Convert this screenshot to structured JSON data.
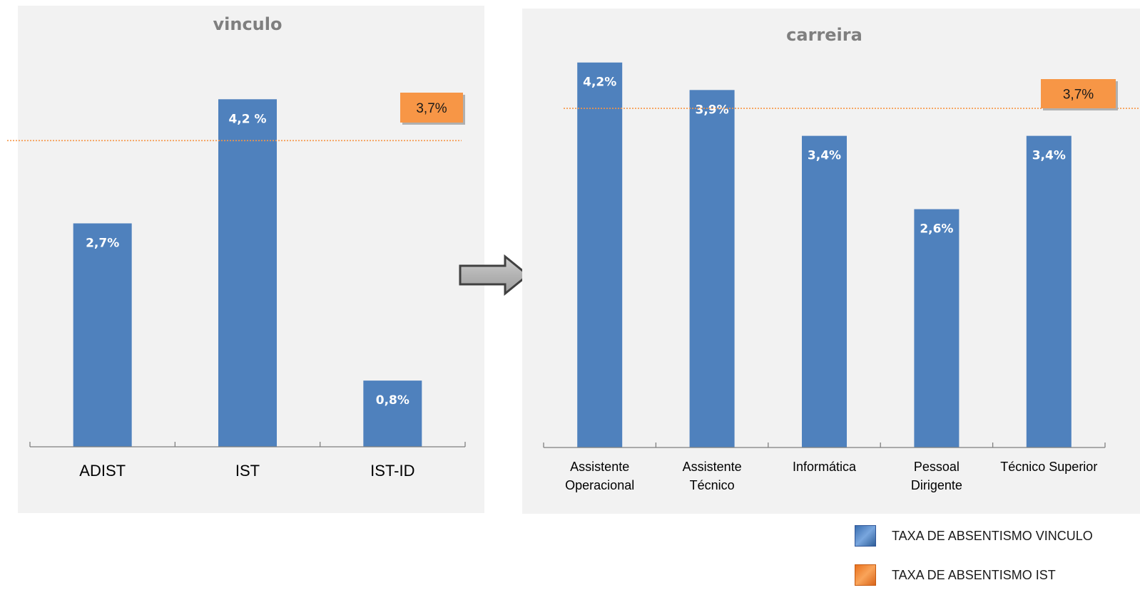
{
  "chart_data": [
    {
      "type": "bar",
      "title": "vinculo",
      "categories": [
        "ADIST",
        "IST",
        "IST-ID"
      ],
      "values": [
        2.7,
        4.2,
        0.8
      ],
      "value_labels": [
        "2,7%",
        "4,2 %",
        "0,8%"
      ],
      "reference_line": {
        "value": 3.7,
        "label": "3,7%"
      },
      "ylim": [
        0,
        4.9
      ],
      "grid": false
    },
    {
      "type": "bar",
      "title": "carreira",
      "categories": [
        "Assistente Operacional",
        "Assistente Técnico",
        "Informática",
        "Pessoal Dirigente",
        "Técnico Superior"
      ],
      "values": [
        4.2,
        3.9,
        3.4,
        2.6,
        3.4
      ],
      "value_labels": [
        "4,2%",
        "3,9%",
        "3,4%",
        "2,6%",
        "3,4%"
      ],
      "reference_line": {
        "value": 3.7,
        "label": "3,7%"
      },
      "ylim": [
        0,
        4.4
      ],
      "grid": false
    }
  ],
  "legend": {
    "items": [
      {
        "label": "TAXA DE ABSENTISMO VINCULO",
        "color": "#4f81bd"
      },
      {
        "label": "TAXA DE ABSENTISMO IST",
        "color": "#f79646"
      }
    ]
  },
  "arrow_icon": "right-arrow-icon",
  "colors": {
    "bar": "#4f81bd",
    "reference": "#f79646",
    "panel": "#f2f2f2",
    "title": "#7f7f7f"
  }
}
